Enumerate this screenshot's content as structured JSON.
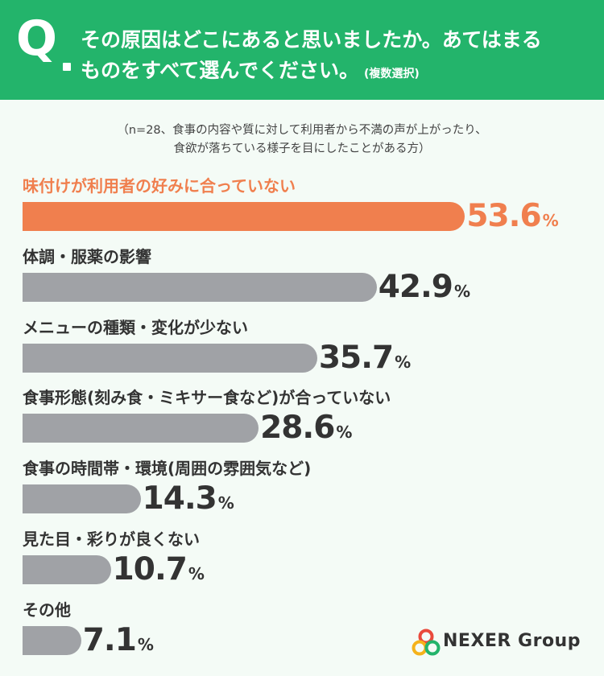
{
  "header": {
    "q": "Q",
    "line1": "その原因はどこにあると思いましたか。あてはまる",
    "line2": "ものをすべて選んでください。",
    "note": "(複数選択)"
  },
  "sample_note": {
    "line1": "（n=28、食事の内容や質に対して利用者から不満の声が上がったり、",
    "line2": "食欲が落ちている様子を目にしたことがある方）"
  },
  "colors": {
    "header_bg": "#23b46b",
    "highlight": "#f07f4e",
    "bar": "#a0a2a6",
    "text": "#333333"
  },
  "chart_data": {
    "type": "bar",
    "orientation": "horizontal",
    "unit": "%",
    "categories": [
      "味付けが利用者の好みに合っていない",
      "体調・服薬の影響",
      "メニューの種類・変化が少ない",
      "食事形態(刻み食・ミキサー食など)が合っていない",
      "食事の時間帯・環境(周囲の雰囲気など)",
      "見た目・彩りが良くない",
      "その他"
    ],
    "values": [
      53.6,
      42.9,
      35.7,
      28.6,
      14.3,
      10.7,
      7.1
    ],
    "value_labels": [
      "53.6",
      "42.9",
      "35.7",
      "28.6",
      "14.3",
      "10.7",
      "7.1"
    ],
    "highlight_index": 0,
    "xlim": [
      0,
      100
    ]
  },
  "logo": {
    "text": "NEXER Group",
    "ring_colors": [
      "#e94a3c",
      "#f5b21a",
      "#23b46b"
    ]
  }
}
